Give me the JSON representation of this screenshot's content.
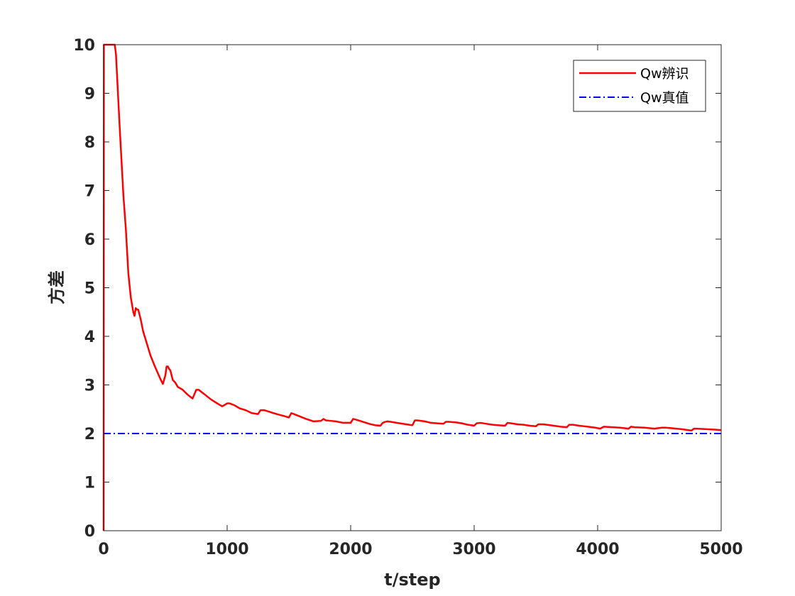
{
  "chart_data": {
    "type": "line",
    "title": "",
    "xlabel": "t/step",
    "ylabel": "方差",
    "xlim": [
      0,
      5000
    ],
    "ylim": [
      0,
      10
    ],
    "xticks": [
      "0",
      "1000",
      "2000",
      "3000",
      "4000",
      "5000"
    ],
    "yticks": [
      "0",
      "1",
      "2",
      "3",
      "4",
      "5",
      "6",
      "7",
      "8",
      "9",
      "10"
    ],
    "grid": false,
    "legend_position": "top-right",
    "series": [
      {
        "name": "Qw辨识",
        "color": "#ff0000",
        "style": "solid",
        "x": [
          0,
          2,
          3,
          5,
          90,
          100,
          130,
          160,
          180,
          200,
          220,
          240,
          250,
          260,
          270,
          280,
          300,
          320,
          350,
          380,
          420,
          460,
          480,
          500,
          510,
          520,
          530,
          540,
          560,
          580,
          600,
          640,
          680,
          720,
          750,
          770,
          790,
          820,
          870,
          920,
          960,
          1000,
          1020,
          1060,
          1100,
          1150,
          1200,
          1250,
          1270,
          1300,
          1350,
          1400,
          1460,
          1500,
          1520,
          1540,
          1580,
          1640,
          1700,
          1760,
          1780,
          1800,
          1840,
          1880,
          1940,
          2000,
          2020,
          2050,
          2100,
          2150,
          2200,
          2240,
          2260,
          2280,
          2300,
          2350,
          2400,
          2450,
          2500,
          2520,
          2540,
          2600,
          2650,
          2700,
          2750,
          2770,
          2800,
          2850,
          2900,
          2950,
          3000,
          3020,
          3050,
          3100,
          3150,
          3200,
          3250,
          3270,
          3300,
          3350,
          3400,
          3450,
          3500,
          3520,
          3560,
          3620,
          3700,
          3750,
          3770,
          3800,
          3850,
          3920,
          3980,
          4020,
          4050,
          4120,
          4180,
          4250,
          4270,
          4300,
          4380,
          4460,
          4520,
          4550,
          4600,
          4680,
          4760,
          4780,
          4800,
          4880,
          4950,
          5000
        ],
        "values": [
          0,
          10,
          10,
          10,
          10,
          9.8,
          8.3,
          6.9,
          6.2,
          5.3,
          4.8,
          4.5,
          4.42,
          4.58,
          4.55,
          4.55,
          4.35,
          4.1,
          3.85,
          3.6,
          3.35,
          3.12,
          3.02,
          3.2,
          3.38,
          3.38,
          3.33,
          3.3,
          3.1,
          3.05,
          2.96,
          2.9,
          2.8,
          2.72,
          2.9,
          2.9,
          2.86,
          2.8,
          2.7,
          2.62,
          2.56,
          2.62,
          2.62,
          2.58,
          2.52,
          2.48,
          2.42,
          2.4,
          2.48,
          2.48,
          2.44,
          2.4,
          2.36,
          2.33,
          2.42,
          2.4,
          2.36,
          2.3,
          2.25,
          2.26,
          2.3,
          2.27,
          2.26,
          2.25,
          2.22,
          2.22,
          2.3,
          2.28,
          2.24,
          2.2,
          2.17,
          2.16,
          2.22,
          2.24,
          2.25,
          2.23,
          2.21,
          2.19,
          2.17,
          2.27,
          2.27,
          2.25,
          2.22,
          2.21,
          2.2,
          2.24,
          2.24,
          2.23,
          2.21,
          2.18,
          2.16,
          2.21,
          2.22,
          2.2,
          2.18,
          2.17,
          2.16,
          2.22,
          2.21,
          2.19,
          2.18,
          2.16,
          2.15,
          2.19,
          2.19,
          2.17,
          2.14,
          2.13,
          2.18,
          2.18,
          2.16,
          2.14,
          2.12,
          2.1,
          2.14,
          2.13,
          2.12,
          2.1,
          2.14,
          2.13,
          2.12,
          2.1,
          2.12,
          2.12,
          2.11,
          2.09,
          2.06,
          2.1,
          2.1,
          2.09,
          2.08,
          2.07
        ]
      },
      {
        "name": "Qw真值",
        "color": "#0000ff",
        "style": "dash-dot",
        "x": [
          0,
          5000
        ],
        "values": [
          2,
          2
        ]
      }
    ]
  }
}
